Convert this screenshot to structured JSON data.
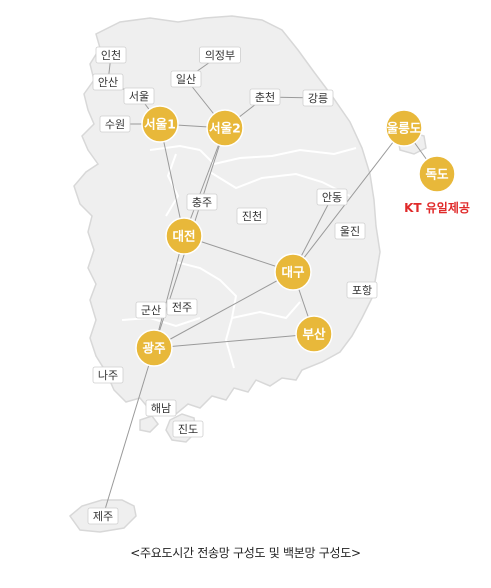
{
  "colors": {
    "land": "#efefef",
    "border": "#d8d8d8",
    "region_line": "#ffffff",
    "route": "#9a9a9a",
    "hub": "#e8b83a",
    "kt_note": "#e02a2a"
  },
  "hubs": [
    {
      "id": "seoul1",
      "label": "서울1"
    },
    {
      "id": "seoul2",
      "label": "서울2"
    },
    {
      "id": "ulleungdo",
      "label": "울릉도"
    },
    {
      "id": "dokdo",
      "label": "독도"
    },
    {
      "id": "daejeon",
      "label": "대전"
    },
    {
      "id": "daegu",
      "label": "대구"
    },
    {
      "id": "busan",
      "label": "부산"
    },
    {
      "id": "gwangju",
      "label": "광주"
    }
  ],
  "cities": [
    {
      "id": "incheon",
      "label": "인천"
    },
    {
      "id": "uijeongbu",
      "label": "의정부"
    },
    {
      "id": "ansan",
      "label": "안산"
    },
    {
      "id": "ilsan",
      "label": "일산"
    },
    {
      "id": "seoul",
      "label": "서울"
    },
    {
      "id": "chuncheon",
      "label": "춘천"
    },
    {
      "id": "gangneung",
      "label": "강릉"
    },
    {
      "id": "suwon",
      "label": "수원"
    },
    {
      "id": "chungju",
      "label": "충주"
    },
    {
      "id": "andong",
      "label": "안동"
    },
    {
      "id": "jincheon",
      "label": "진천"
    },
    {
      "id": "uljin",
      "label": "울진"
    },
    {
      "id": "pohang",
      "label": "포항"
    },
    {
      "id": "gunsan",
      "label": "군산"
    },
    {
      "id": "jeonju",
      "label": "전주"
    },
    {
      "id": "naju",
      "label": "나주"
    },
    {
      "id": "haenam",
      "label": "해남"
    },
    {
      "id": "jindo",
      "label": "진도"
    },
    {
      "id": "jeju",
      "label": "제주"
    }
  ],
  "kt_note": "KT 유일제공",
  "caption": "<주요도시간 전송망 구성도 및 백본망 구성도>"
}
